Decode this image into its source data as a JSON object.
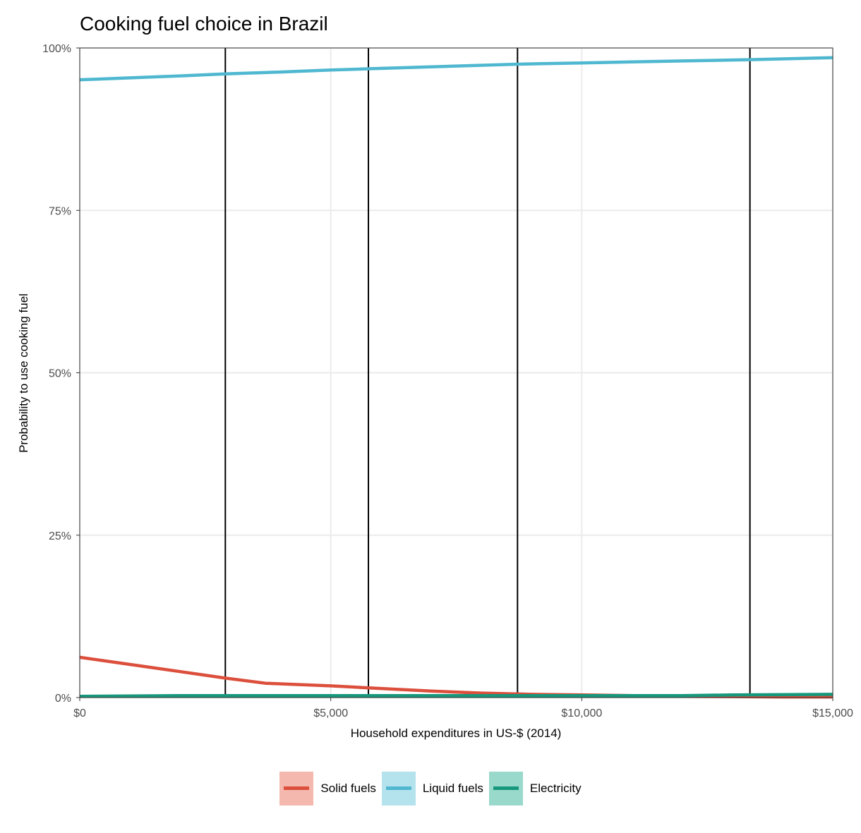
{
  "chart_data": {
    "type": "line",
    "title": "Cooking fuel choice in Brazil",
    "xlabel": "Household expenditures in US-$ (2014)",
    "ylabel": "Probability to use cooking fuel",
    "xlim": [
      0,
      15000
    ],
    "ylim": [
      0,
      1
    ],
    "x_ticks": [
      0,
      5000,
      10000,
      15000
    ],
    "x_tick_labels": [
      "$0",
      "$5,000",
      "$10,000",
      "$15,000"
    ],
    "y_ticks": [
      0,
      0.25,
      0.5,
      0.75,
      1
    ],
    "y_tick_labels": [
      "0%",
      "25%",
      "50%",
      "75%",
      "100%"
    ],
    "grid": true,
    "legend_position": "bottom",
    "vertical_lines": [
      2900,
      5750,
      8720,
      13350
    ],
    "series": [
      {
        "name": "Solid fuels",
        "color": "#dc4f3c",
        "fill_color": "#f4b8ae",
        "x": [
          0,
          1000,
          2000,
          2900,
          3700,
          5000,
          6000,
          7000,
          8000,
          9000,
          10000,
          11000,
          12000,
          13000,
          14000,
          15000
        ],
        "y": [
          0.062,
          0.051,
          0.04,
          0.03,
          0.022,
          0.018,
          0.014,
          0.01,
          0.007,
          0.005,
          0.004,
          0.003,
          0.002,
          0.0015,
          0.001,
          0.001
        ]
      },
      {
        "name": "Liquid fuels",
        "color": "#4fb8d0",
        "fill_color": "#b5e3ed",
        "x": [
          0,
          1000,
          2000,
          2900,
          4000,
          5000,
          5750,
          7000,
          8720,
          10000,
          12000,
          13350,
          15000
        ],
        "y": [
          0.951,
          0.954,
          0.957,
          0.96,
          0.963,
          0.966,
          0.968,
          0.971,
          0.975,
          0.977,
          0.98,
          0.982,
          0.985
        ]
      },
      {
        "name": "Electricity",
        "color": "#17987c",
        "fill_color": "#99d9cb",
        "x": [
          0,
          2000,
          5000,
          8000,
          10000,
          12000,
          13000,
          15000
        ],
        "y": [
          0.002,
          0.003,
          0.003,
          0.003,
          0.003,
          0.003,
          0.004,
          0.005
        ]
      }
    ]
  }
}
